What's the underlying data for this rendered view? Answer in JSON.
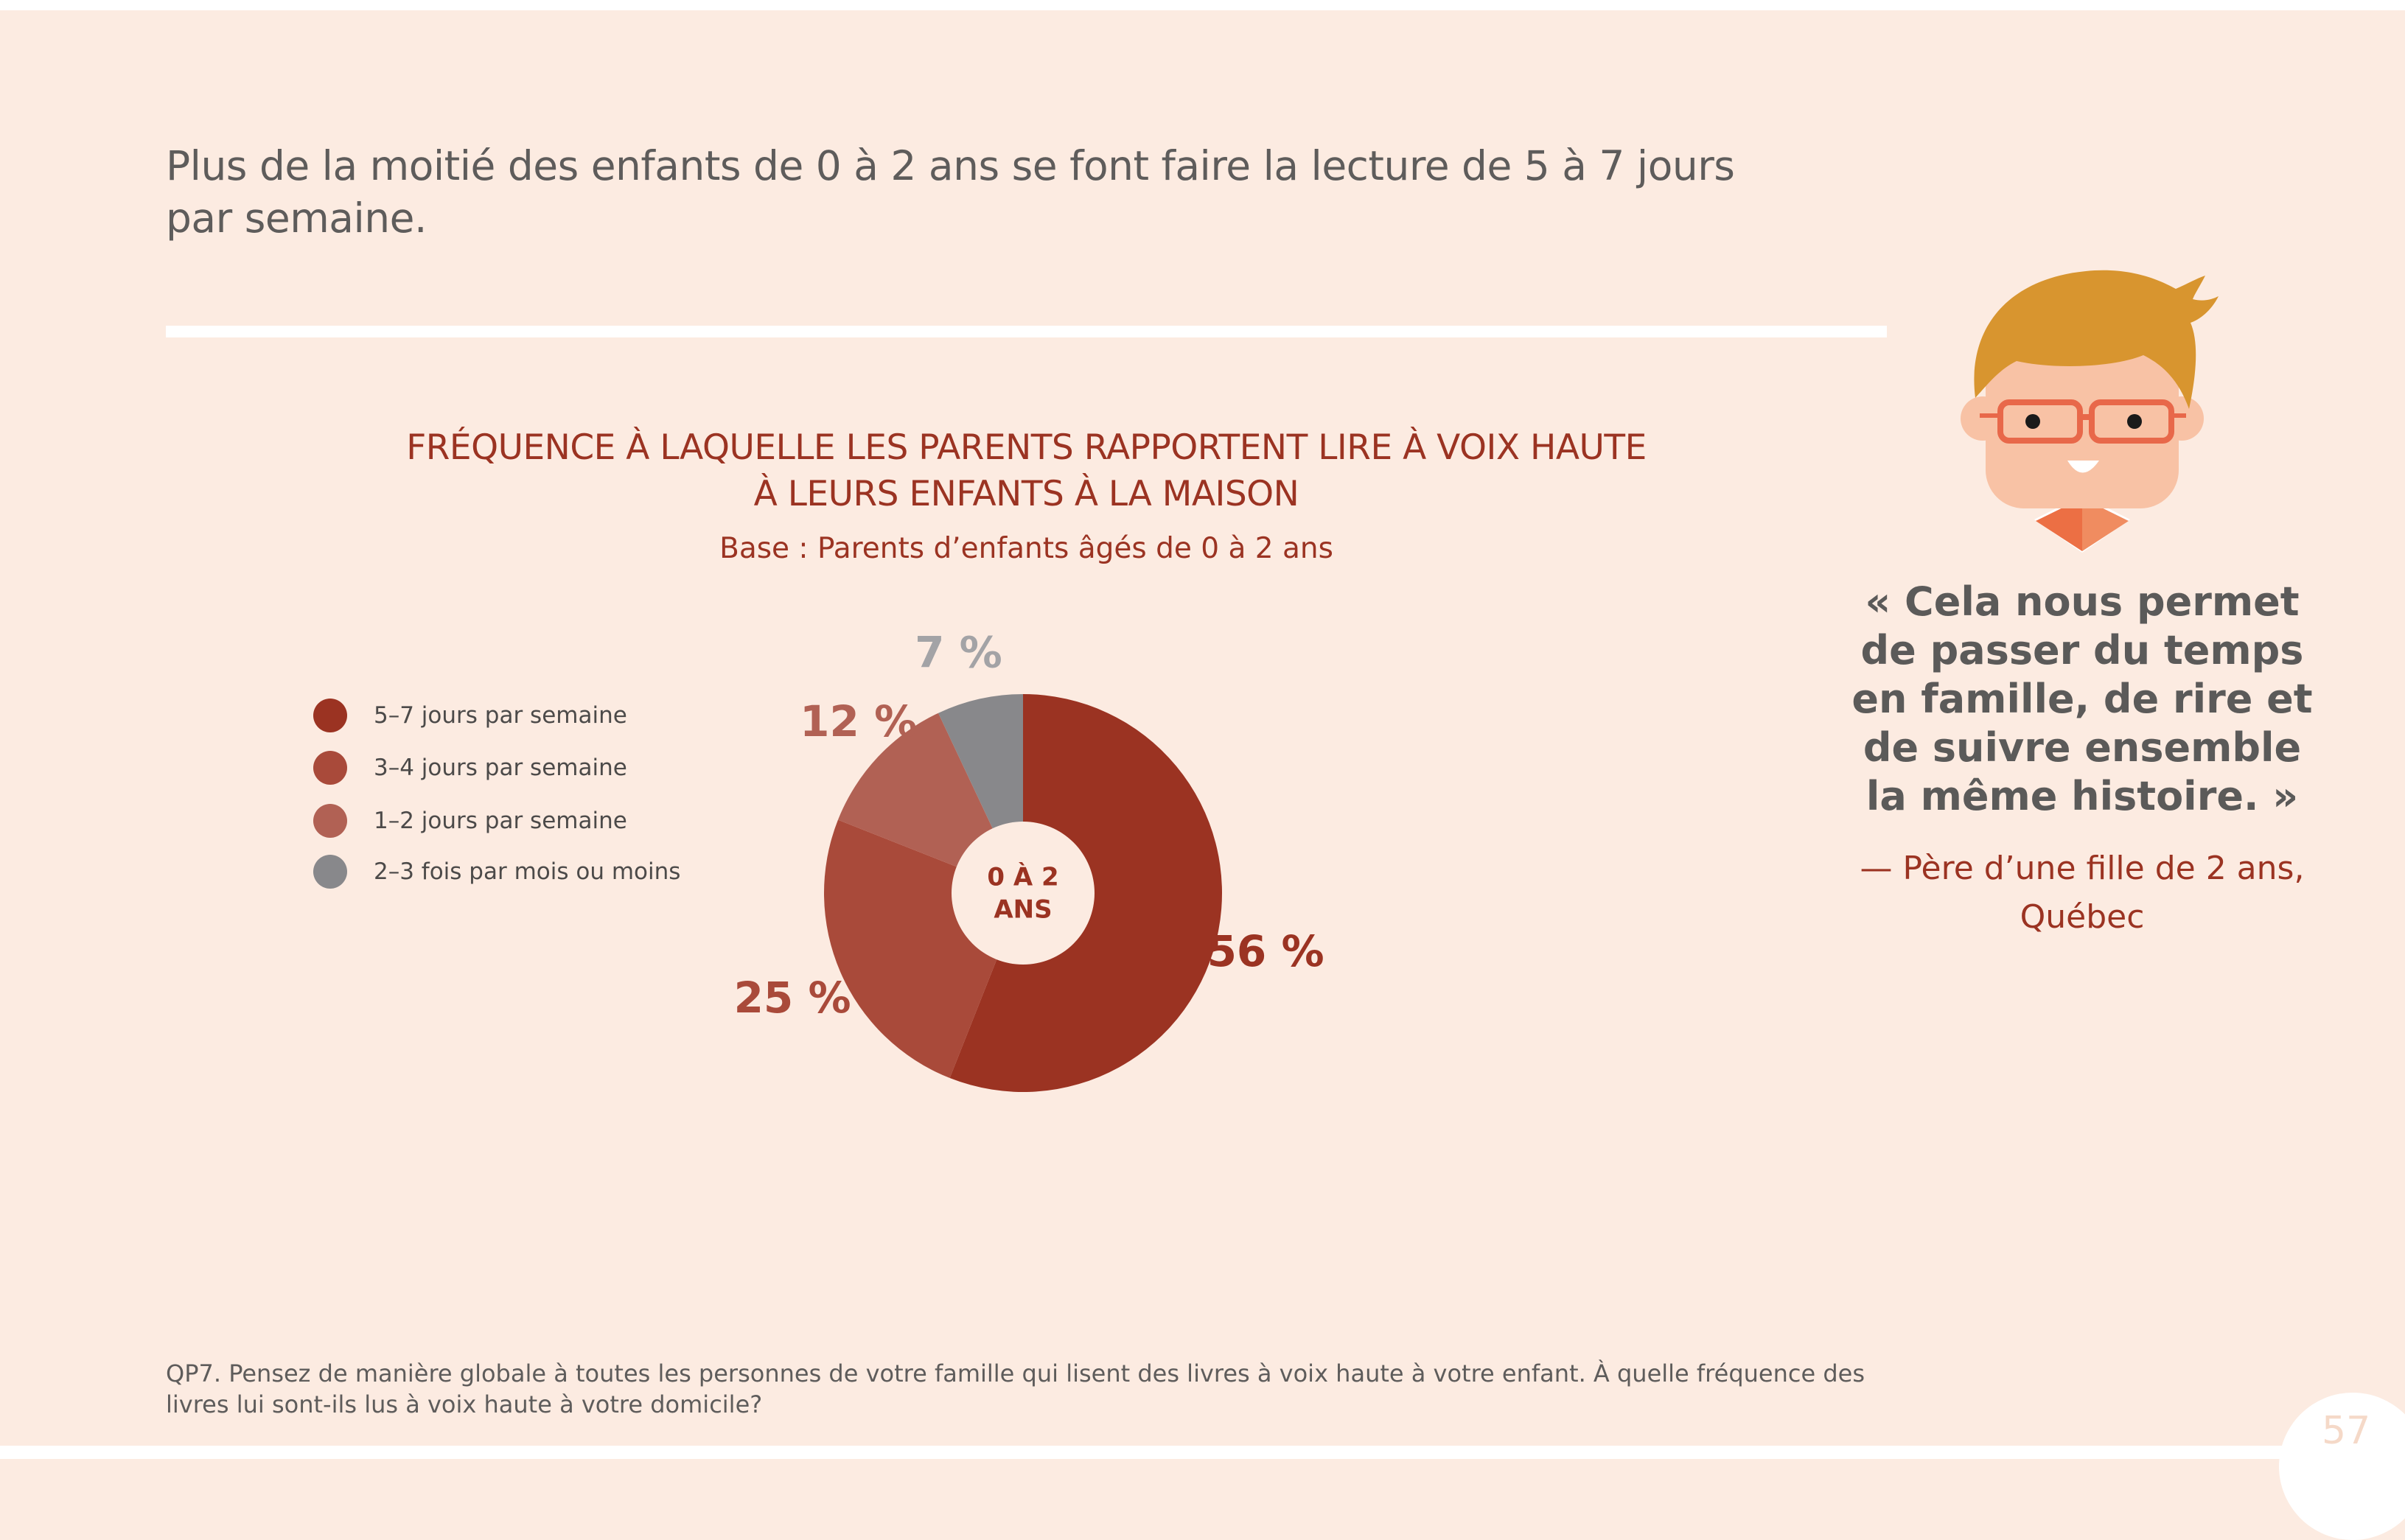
{
  "headline": "Plus de la moitié des enfants de 0 à 2 ans se font faire la lecture de 5 à 7 jours par semaine.",
  "quote": {
    "text": "« Cela nous permet de passer du temps en famille, de rire et de suivre ensemble la même histoire. »",
    "author": "— Père d’une fille de 2 ans, Québec"
  },
  "footnote": "QP7. Pensez de manière globale à toutes les personnes de votre famille qui lisent des livres à voix haute à votre enfant. À quelle fréquence des livres lui sont-ils lus à voix haute à votre domicile?",
  "page_number": "57",
  "chart_data": {
    "type": "pie",
    "title_lines": [
      "FRÉQUENCE À LAQUELLE LES PARENTS RAPPORTENT LIRE À VOIX HAUTE",
      "À LEURS ENFANTS À LA MAISON"
    ],
    "subtitle": "Base : Parents d’enfants âgés de 0 à 2 ans",
    "center_label": [
      "0 À 2",
      "ANS"
    ],
    "legend_position": "left",
    "slices": [
      {
        "label": "5–7 jours par semaine",
        "value": 56,
        "display": "56 %",
        "color": "#9b3322"
      },
      {
        "label": "3–4 jours par semaine",
        "value": 25,
        "display": "25 %",
        "color": "#a94a3a"
      },
      {
        "label": "1–2 jours par semaine",
        "value": 12,
        "display": "12 %",
        "color": "#b16154"
      },
      {
        "label": "2–3 fois par mois ou moins",
        "value": 7,
        "display": "7 %",
        "color": "#88888b"
      }
    ],
    "label_colors": [
      "#9b3322",
      "#a94a3a",
      "#b16154",
      "#a3a3a6"
    ]
  }
}
